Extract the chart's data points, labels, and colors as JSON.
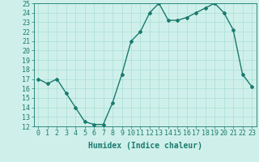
{
  "x": [
    0,
    1,
    2,
    3,
    4,
    5,
    6,
    7,
    8,
    9,
    10,
    11,
    12,
    13,
    14,
    15,
    16,
    17,
    18,
    19,
    20,
    21,
    22,
    23
  ],
  "y": [
    17.0,
    16.5,
    17.0,
    15.5,
    14.0,
    12.5,
    12.2,
    12.2,
    14.5,
    17.5,
    21.0,
    22.0,
    24.0,
    25.0,
    23.2,
    23.2,
    23.5,
    24.0,
    24.5,
    25.0,
    24.0,
    22.2,
    17.5,
    16.2
  ],
  "line_color": "#1a7a6e",
  "marker": "D",
  "marker_size": 2,
  "bg_color": "#cff0ea",
  "grid_color": "#aaddd6",
  "xlabel": "Humidex (Indice chaleur)",
  "ylim": [
    12,
    25
  ],
  "xlim_min": -0.5,
  "xlim_max": 23.5,
  "yticks": [
    12,
    13,
    14,
    15,
    16,
    17,
    18,
    19,
    20,
    21,
    22,
    23,
    24,
    25
  ],
  "xticks": [
    0,
    1,
    2,
    3,
    4,
    5,
    6,
    7,
    8,
    9,
    10,
    11,
    12,
    13,
    14,
    15,
    16,
    17,
    18,
    19,
    20,
    21,
    22,
    23
  ],
  "xtick_labels": [
    "0",
    "1",
    "2",
    "3",
    "4",
    "5",
    "6",
    "7",
    "8",
    "9",
    "10",
    "11",
    "12",
    "13",
    "14",
    "15",
    "16",
    "17",
    "18",
    "19",
    "20",
    "21",
    "22",
    "23"
  ],
  "xlabel_fontsize": 7,
  "tick_fontsize": 6,
  "line_width": 1.0
}
